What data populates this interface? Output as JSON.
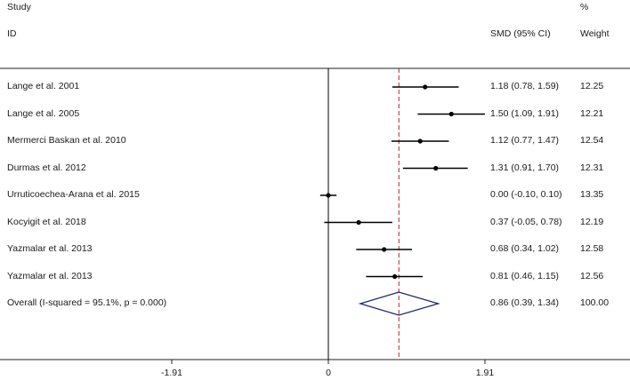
{
  "header": {
    "study_line1": "Study",
    "study_line2": "ID",
    "effect_label": "SMD (95% CI)",
    "weight_line1": "%",
    "weight_line2": "Weight"
  },
  "chart_data": {
    "type": "forest",
    "xlim": [
      -2.6,
      2.6
    ],
    "ticks": [
      -1.91,
      0,
      1.91
    ],
    "tick_labels": [
      "-1.91",
      "0",
      "1.91"
    ],
    "null_line": 0,
    "overall_line": 0.86,
    "studies": [
      {
        "label": "Lange et al. 2001",
        "smd": 1.18,
        "lo": 0.78,
        "hi": 1.59,
        "ci_text": "1.18 (0.78, 1.59)",
        "weight": "12.25"
      },
      {
        "label": "Lange et al. 2005",
        "smd": 1.5,
        "lo": 1.09,
        "hi": 1.91,
        "ci_text": "1.50 (1.09, 1.91)",
        "weight": "12.21"
      },
      {
        "label": "Mermerci Baskan et al. 2010",
        "smd": 1.12,
        "lo": 0.77,
        "hi": 1.47,
        "ci_text": "1.12 (0.77, 1.47)",
        "weight": "12.54"
      },
      {
        "label": "Durmas et al. 2012",
        "smd": 1.31,
        "lo": 0.91,
        "hi": 1.7,
        "ci_text": "1.31 (0.91, 1.70)",
        "weight": "12.31"
      },
      {
        "label": "Urruticoechea-Arana et al. 2015",
        "smd": 0.0,
        "lo": -0.1,
        "hi": 0.1,
        "ci_text": "0.00 (-0.10, 0.10)",
        "weight": "13.35"
      },
      {
        "label": "Kocyigit et al. 2018",
        "smd": 0.37,
        "lo": -0.05,
        "hi": 0.78,
        "ci_text": "0.37 (-0.05, 0.78)",
        "weight": "12.19"
      },
      {
        "label": "Yazmalar et al. 2013",
        "smd": 0.68,
        "lo": 0.34,
        "hi": 1.02,
        "ci_text": "0.68 (0.34, 1.02)",
        "weight": "12.58"
      },
      {
        "label": "Yazmalar et al. 2013",
        "smd": 0.81,
        "lo": 0.46,
        "hi": 1.15,
        "ci_text": "0.81 (0.46, 1.15)",
        "weight": "12.56"
      }
    ],
    "overall": {
      "label": "Overall  (I-squared = 95.1%, p = 0.000)",
      "smd": 0.86,
      "lo": 0.39,
      "hi": 1.34,
      "ci_text": "0.86 (0.39, 1.34)",
      "weight": "100.00"
    },
    "colors": {
      "diamond": "#1f2a6b",
      "overall_line": "#c0202a",
      "marks": "#000000"
    }
  }
}
